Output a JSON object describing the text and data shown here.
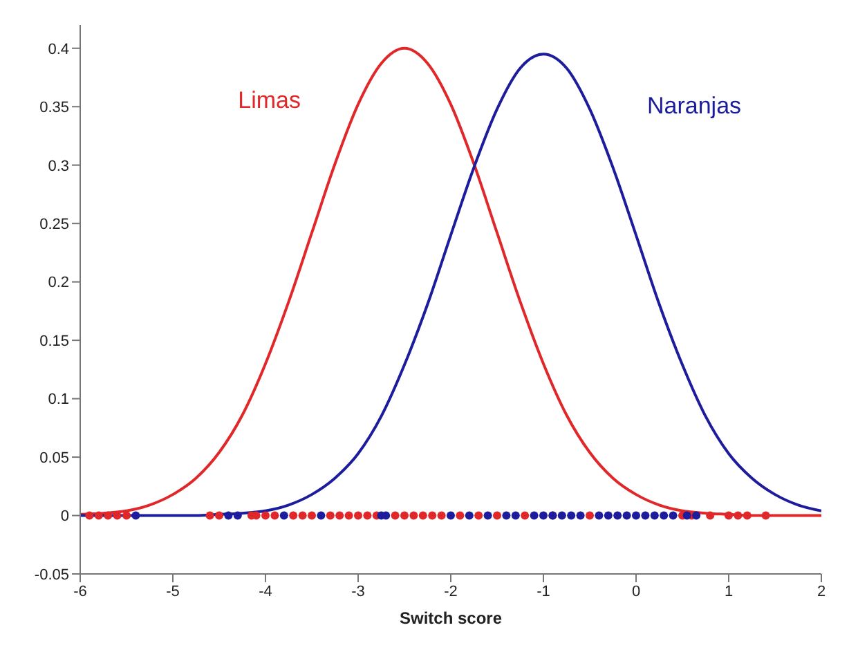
{
  "chart_data": {
    "type": "line",
    "xlabel": "Switch score",
    "xlim": [
      -6,
      2
    ],
    "xticks": [
      -6,
      -5,
      -4,
      -3,
      -2,
      -1,
      0,
      1,
      2
    ],
    "ylim": [
      -0.05,
      0.42
    ],
    "yticks": [
      -0.05,
      0,
      0.05,
      0.1,
      0.15,
      0.2,
      0.25,
      0.3,
      0.35,
      0.4
    ],
    "grid": false,
    "legend": false,
    "marker": "none",
    "line_style": "solid",
    "x": [
      -6,
      -5.75,
      -5.5,
      -5.25,
      -5,
      -4.75,
      -4.5,
      -4.25,
      -4,
      -3.75,
      -3.5,
      -3.25,
      -3,
      -2.75,
      -2.5,
      -2.25,
      -2,
      -1.75,
      -1.5,
      -1.25,
      -1,
      -0.75,
      -0.5,
      -0.25,
      0,
      0.25,
      0.5,
      0.75,
      1,
      1.25,
      1.5,
      1.75,
      2
    ],
    "series": [
      {
        "name": "Limas",
        "color": "#e0282a",
        "values": [
          0.001,
          0.002,
          0.004,
          0.009,
          0.018,
          0.032,
          0.054,
          0.086,
          0.13,
          0.183,
          0.242,
          0.301,
          0.352,
          0.387,
          0.4,
          0.387,
          0.352,
          0.301,
          0.242,
          0.183,
          0.13,
          0.086,
          0.054,
          0.032,
          0.018,
          0.009,
          0.004,
          0.002,
          0.001,
          0,
          0,
          0,
          0
        ]
      },
      {
        "name": "Naranjas",
        "color": "#1c1c9c",
        "values": [
          0,
          0,
          0,
          0,
          0,
          0,
          0.001,
          0.002,
          0.004,
          0.009,
          0.018,
          0.032,
          0.053,
          0.085,
          0.129,
          0.181,
          0.24,
          0.298,
          0.348,
          0.383,
          0.395,
          0.383,
          0.348,
          0.298,
          0.24,
          0.181,
          0.129,
          0.085,
          0.053,
          0.032,
          0.018,
          0.009,
          0.004
        ]
      },
      {
        "type": "scatter",
        "color": "#e0282a",
        "marker": "circle",
        "x": [
          -5.9,
          -5.8,
          -5.7,
          -5.6,
          -5.5,
          -4.6,
          -4.5,
          -4.15,
          -4.1,
          -4,
          -3.9,
          -3.7,
          -3.6,
          -3.5,
          -3.3,
          -3.2,
          -3.1,
          -3,
          -2.9,
          -2.8,
          -2.6,
          -2.5,
          -2.4,
          -2.3,
          -2.2,
          -2.1,
          -1.9,
          -1.7,
          -1.5,
          -1.2,
          -0.9,
          -0.5,
          0.5,
          0.6,
          0.8,
          1,
          1.1,
          1.2,
          1.4
        ],
        "values": [
          0,
          0,
          0,
          0,
          0,
          0,
          0,
          0,
          0,
          0,
          0,
          0,
          0,
          0,
          0,
          0,
          0,
          0,
          0,
          0,
          0,
          0,
          0,
          0,
          0,
          0,
          0,
          0,
          0,
          0,
          0,
          0,
          0,
          0,
          0,
          0,
          0,
          0,
          0
        ]
      },
      {
        "type": "scatter",
        "color": "#1c1c9c",
        "marker": "circle",
        "x": [
          -5.4,
          -4.4,
          -4.3,
          -3.8,
          -3.4,
          -2.75,
          -2.7,
          -2,
          -1.8,
          -1.6,
          -1.4,
          -1.3,
          -1.1,
          -1,
          -0.9,
          -0.8,
          -0.7,
          -0.6,
          -0.4,
          -0.3,
          -0.2,
          -0.1,
          0,
          0.1,
          0.2,
          0.3,
          0.4,
          0.55,
          0.65
        ],
        "values": [
          0,
          0,
          0,
          0,
          0,
          0,
          0,
          0,
          0,
          0,
          0,
          0,
          0,
          0,
          0,
          0,
          0,
          0,
          0,
          0,
          0,
          0,
          0,
          0,
          0,
          0,
          0,
          0,
          0
        ]
      }
    ]
  }
}
